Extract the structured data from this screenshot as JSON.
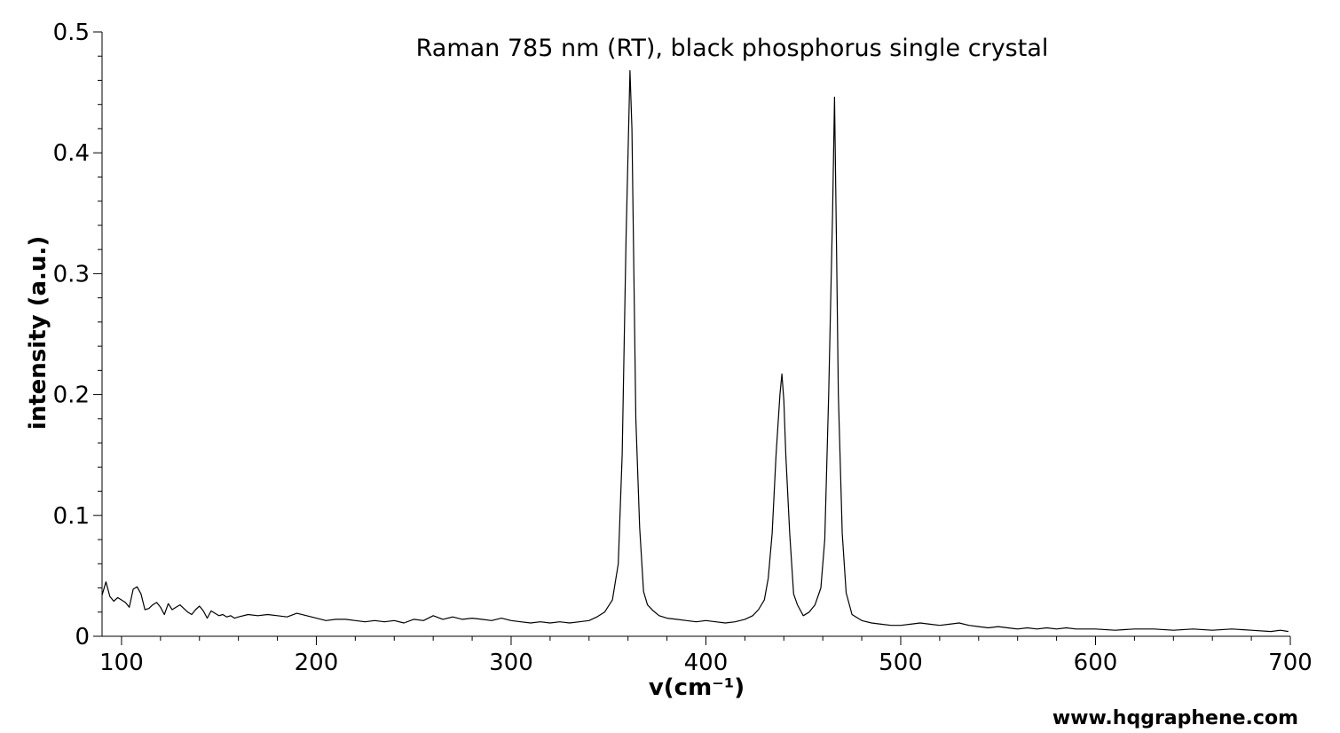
{
  "chart_data": {
    "type": "line",
    "title": "Raman 785 nm (RT), black phosphorus single crystal",
    "xlabel": "v(cm⁻¹)",
    "ylabel": "intensity (a.u.)",
    "xlim": [
      90,
      700
    ],
    "ylim": [
      0,
      0.5
    ],
    "xticks": [
      100,
      200,
      300,
      400,
      500,
      600,
      700
    ],
    "xtick_labels": [
      "100",
      "200",
      "300",
      "400",
      "500",
      "600",
      "700"
    ],
    "yticks": [
      0,
      0.1,
      0.2,
      0.3,
      0.4,
      0.5
    ],
    "ytick_labels": [
      "0",
      "0.1",
      "0.2",
      "0.3",
      "0.4",
      "0.5"
    ],
    "grid": false,
    "series": [
      {
        "color": "#000000",
        "x": [
          90,
          92,
          94,
          96,
          98,
          100,
          102,
          104,
          106,
          108,
          110,
          112,
          114,
          116,
          118,
          120,
          122,
          124,
          126,
          128,
          130,
          132,
          134,
          136,
          138,
          140,
          142,
          144,
          146,
          148,
          150,
          152,
          154,
          156,
          158,
          160,
          165,
          170,
          175,
          180,
          185,
          190,
          195,
          200,
          205,
          210,
          215,
          220,
          225,
          230,
          235,
          240,
          245,
          250,
          255,
          260,
          265,
          270,
          275,
          280,
          285,
          290,
          295,
          300,
          305,
          310,
          315,
          320,
          325,
          330,
          335,
          340,
          344,
          348,
          352,
          355,
          357,
          359,
          361,
          362,
          363,
          364,
          366,
          368,
          370,
          373,
          376,
          380,
          385,
          390,
          395,
          400,
          405,
          410,
          415,
          420,
          424,
          427,
          430,
          432,
          434,
          436,
          438,
          439,
          440,
          441,
          443,
          445,
          447,
          450,
          453,
          456,
          459,
          461,
          463,
          465,
          466,
          467,
          468,
          470,
          472,
          475,
          480,
          485,
          490,
          495,
          500,
          505,
          510,
          515,
          520,
          525,
          530,
          535,
          540,
          545,
          550,
          555,
          560,
          565,
          570,
          575,
          580,
          585,
          590,
          595,
          600,
          610,
          620,
          630,
          640,
          650,
          660,
          670,
          680,
          690,
          695,
          699
        ],
        "y": [
          0.034,
          0.045,
          0.033,
          0.029,
          0.032,
          0.03,
          0.028,
          0.024,
          0.039,
          0.041,
          0.035,
          0.022,
          0.023,
          0.026,
          0.028,
          0.024,
          0.018,
          0.027,
          0.022,
          0.024,
          0.026,
          0.023,
          0.02,
          0.018,
          0.022,
          0.025,
          0.021,
          0.015,
          0.021,
          0.019,
          0.017,
          0.018,
          0.016,
          0.017,
          0.015,
          0.016,
          0.018,
          0.017,
          0.018,
          0.017,
          0.016,
          0.019,
          0.017,
          0.015,
          0.013,
          0.014,
          0.014,
          0.013,
          0.012,
          0.013,
          0.012,
          0.013,
          0.011,
          0.014,
          0.013,
          0.017,
          0.014,
          0.016,
          0.014,
          0.015,
          0.014,
          0.013,
          0.015,
          0.013,
          0.012,
          0.011,
          0.012,
          0.011,
          0.012,
          0.011,
          0.012,
          0.013,
          0.016,
          0.02,
          0.03,
          0.06,
          0.15,
          0.33,
          0.468,
          0.42,
          0.3,
          0.18,
          0.09,
          0.037,
          0.026,
          0.021,
          0.017,
          0.015,
          0.014,
          0.013,
          0.012,
          0.013,
          0.012,
          0.011,
          0.012,
          0.014,
          0.017,
          0.022,
          0.03,
          0.048,
          0.085,
          0.15,
          0.2,
          0.217,
          0.195,
          0.15,
          0.085,
          0.035,
          0.026,
          0.017,
          0.02,
          0.026,
          0.04,
          0.08,
          0.2,
          0.35,
          0.446,
          0.33,
          0.2,
          0.085,
          0.036,
          0.018,
          0.013,
          0.011,
          0.01,
          0.009,
          0.009,
          0.01,
          0.011,
          0.01,
          0.009,
          0.01,
          0.011,
          0.009,
          0.008,
          0.007,
          0.008,
          0.007,
          0.006,
          0.007,
          0.006,
          0.007,
          0.006,
          0.007,
          0.006,
          0.006,
          0.006,
          0.005,
          0.006,
          0.006,
          0.005,
          0.006,
          0.005,
          0.006,
          0.005,
          0.004,
          0.005,
          0.004
        ]
      }
    ]
  },
  "watermark": "www.hqgraphene.com"
}
